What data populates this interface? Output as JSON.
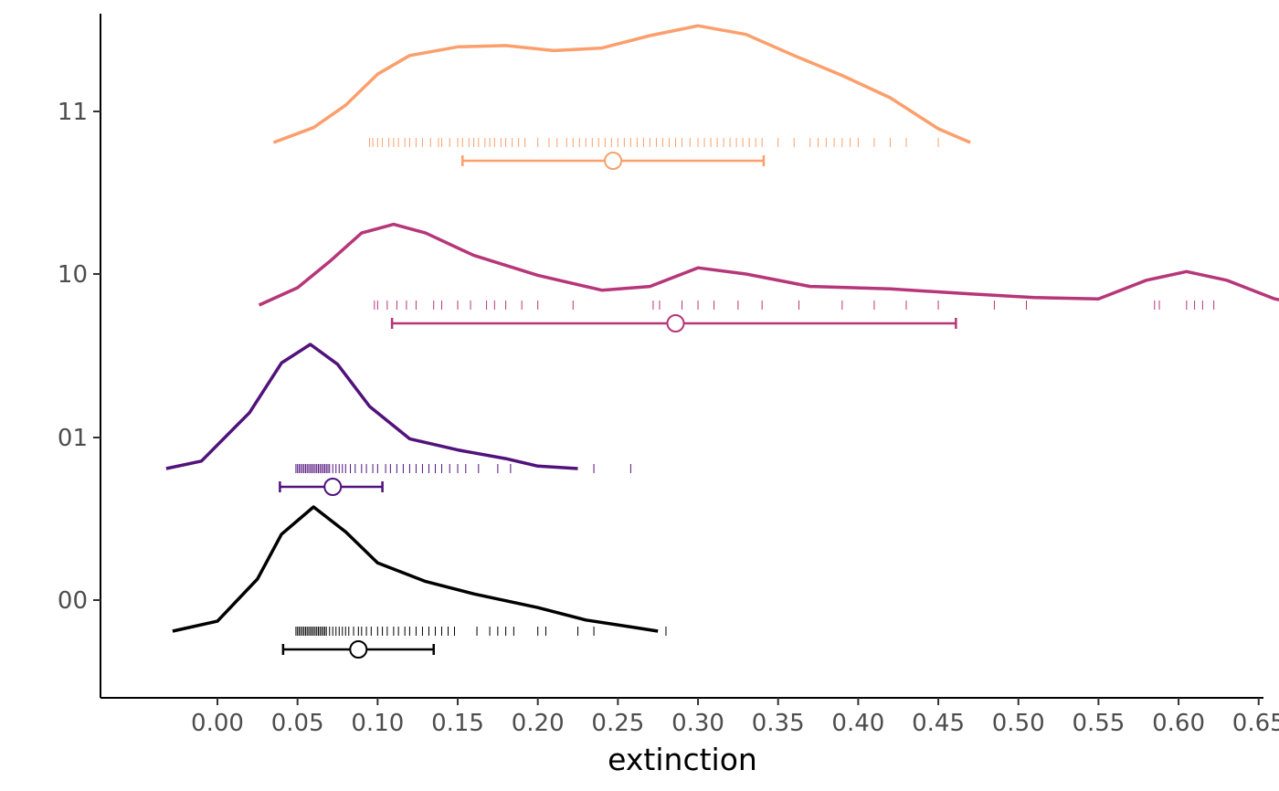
{
  "chart_data": {
    "type": "raincloud",
    "title": "",
    "xlabel": "extinction",
    "ylabel": "",
    "xlim": [
      -0.073,
      0.653
    ],
    "x_ticks": [
      0.0,
      0.05,
      0.1,
      0.15,
      0.2,
      0.25,
      0.3,
      0.35,
      0.4,
      0.45,
      0.5,
      0.55,
      0.6,
      0.65
    ],
    "x_tick_labels": [
      "0.00",
      "0.05",
      "0.10",
      "0.15",
      "0.20",
      "0.25",
      "0.30",
      "0.35",
      "0.40",
      "0.45",
      "0.50",
      "0.55",
      "0.60",
      "0.65"
    ],
    "categories": [
      "00",
      "01",
      "10",
      "11"
    ],
    "grid": false,
    "legend": "none",
    "series": [
      {
        "category": "00",
        "color": "#000000",
        "density": [
          [
            -0.028,
            0.0
          ],
          [
            0.0,
            0.08
          ],
          [
            0.025,
            0.42
          ],
          [
            0.04,
            0.78
          ],
          [
            0.06,
            1.0
          ],
          [
            0.08,
            0.8
          ],
          [
            0.1,
            0.55
          ],
          [
            0.13,
            0.4
          ],
          [
            0.16,
            0.3
          ],
          [
            0.2,
            0.19
          ],
          [
            0.23,
            0.09
          ],
          [
            0.26,
            0.03
          ],
          [
            0.275,
            0.0
          ]
        ],
        "points": [
          0.049,
          0.05,
          0.051,
          0.052,
          0.053,
          0.054,
          0.055,
          0.056,
          0.057,
          0.058,
          0.059,
          0.06,
          0.061,
          0.062,
          0.063,
          0.064,
          0.065,
          0.066,
          0.067,
          0.068,
          0.07,
          0.072,
          0.074,
          0.076,
          0.078,
          0.08,
          0.082,
          0.085,
          0.088,
          0.09,
          0.093,
          0.096,
          0.1,
          0.103,
          0.106,
          0.11,
          0.113,
          0.117,
          0.12,
          0.124,
          0.128,
          0.132,
          0.136,
          0.14,
          0.144,
          0.148,
          0.162,
          0.17,
          0.175,
          0.18,
          0.185,
          0.2,
          0.205,
          0.225,
          0.235,
          0.28
        ],
        "mean": 0.088,
        "interval": [
          0.041,
          0.135
        ]
      },
      {
        "category": "01",
        "color": "#51127c",
        "density": [
          [
            -0.032,
            0.0
          ],
          [
            -0.01,
            0.06
          ],
          [
            0.02,
            0.45
          ],
          [
            0.04,
            0.85
          ],
          [
            0.058,
            1.0
          ],
          [
            0.075,
            0.84
          ],
          [
            0.095,
            0.5
          ],
          [
            0.12,
            0.24
          ],
          [
            0.15,
            0.15
          ],
          [
            0.18,
            0.08
          ],
          [
            0.2,
            0.02
          ],
          [
            0.225,
            0.0
          ]
        ],
        "points": [
          0.049,
          0.05,
          0.051,
          0.052,
          0.053,
          0.054,
          0.055,
          0.056,
          0.057,
          0.058,
          0.059,
          0.06,
          0.061,
          0.062,
          0.063,
          0.064,
          0.065,
          0.066,
          0.067,
          0.068,
          0.069,
          0.07,
          0.072,
          0.074,
          0.076,
          0.078,
          0.08,
          0.083,
          0.086,
          0.09,
          0.093,
          0.097,
          0.1,
          0.105,
          0.108,
          0.112,
          0.116,
          0.12,
          0.124,
          0.128,
          0.132,
          0.136,
          0.14,
          0.145,
          0.15,
          0.155,
          0.163,
          0.175,
          0.183,
          0.235,
          0.258
        ],
        "mean": 0.072,
        "interval": [
          0.039,
          0.103
        ]
      },
      {
        "category": "10",
        "color": "#b63679",
        "density": [
          [
            0.026,
            0.0
          ],
          [
            0.05,
            0.14
          ],
          [
            0.07,
            0.35
          ],
          [
            0.09,
            0.58
          ],
          [
            0.11,
            0.65
          ],
          [
            0.13,
            0.58
          ],
          [
            0.16,
            0.4
          ],
          [
            0.2,
            0.24
          ],
          [
            0.24,
            0.12
          ],
          [
            0.27,
            0.15
          ],
          [
            0.3,
            0.3
          ],
          [
            0.33,
            0.25
          ],
          [
            0.37,
            0.15
          ],
          [
            0.42,
            0.13
          ],
          [
            0.47,
            0.09
          ],
          [
            0.51,
            0.06
          ],
          [
            0.55,
            0.05
          ],
          [
            0.58,
            0.2
          ],
          [
            0.605,
            0.27
          ],
          [
            0.63,
            0.2
          ],
          [
            0.66,
            0.05
          ],
          [
            0.68,
            0.0
          ]
        ],
        "points": [
          0.098,
          0.1,
          0.106,
          0.112,
          0.118,
          0.124,
          0.135,
          0.14,
          0.15,
          0.158,
          0.168,
          0.173,
          0.18,
          0.19,
          0.2,
          0.222,
          0.272,
          0.276,
          0.29,
          0.3,
          0.31,
          0.325,
          0.34,
          0.363,
          0.39,
          0.41,
          0.43,
          0.45,
          0.485,
          0.505,
          0.585,
          0.588,
          0.605,
          0.61,
          0.615,
          0.622
        ],
        "mean": 0.286,
        "interval": [
          0.109,
          0.461
        ]
      },
      {
        "category": "11",
        "color": "#fc9f6c",
        "density": [
          [
            0.035,
            0.0
          ],
          [
            0.06,
            0.12
          ],
          [
            0.08,
            0.3
          ],
          [
            0.1,
            0.55
          ],
          [
            0.12,
            0.7
          ],
          [
            0.15,
            0.77
          ],
          [
            0.18,
            0.78
          ],
          [
            0.21,
            0.74
          ],
          [
            0.24,
            0.76
          ],
          [
            0.27,
            0.86
          ],
          [
            0.3,
            0.94
          ],
          [
            0.33,
            0.87
          ],
          [
            0.36,
            0.7
          ],
          [
            0.39,
            0.54
          ],
          [
            0.42,
            0.36
          ],
          [
            0.45,
            0.11
          ],
          [
            0.47,
            0.0
          ]
        ],
        "points": [
          0.095,
          0.097,
          0.1,
          0.103,
          0.107,
          0.11,
          0.113,
          0.117,
          0.12,
          0.124,
          0.128,
          0.133,
          0.138,
          0.14,
          0.145,
          0.15,
          0.153,
          0.157,
          0.16,
          0.163,
          0.167,
          0.17,
          0.173,
          0.177,
          0.18,
          0.184,
          0.188,
          0.192,
          0.2,
          0.207,
          0.212,
          0.218,
          0.222,
          0.226,
          0.23,
          0.234,
          0.238,
          0.242,
          0.246,
          0.25,
          0.254,
          0.258,
          0.262,
          0.266,
          0.27,
          0.274,
          0.278,
          0.282,
          0.286,
          0.29,
          0.295,
          0.3,
          0.304,
          0.308,
          0.312,
          0.316,
          0.32,
          0.324,
          0.328,
          0.332,
          0.336,
          0.34,
          0.35,
          0.36,
          0.37,
          0.375,
          0.38,
          0.385,
          0.39,
          0.395,
          0.4,
          0.41,
          0.42,
          0.43,
          0.45
        ],
        "mean": 0.247,
        "interval": [
          0.153,
          0.341
        ]
      }
    ]
  }
}
